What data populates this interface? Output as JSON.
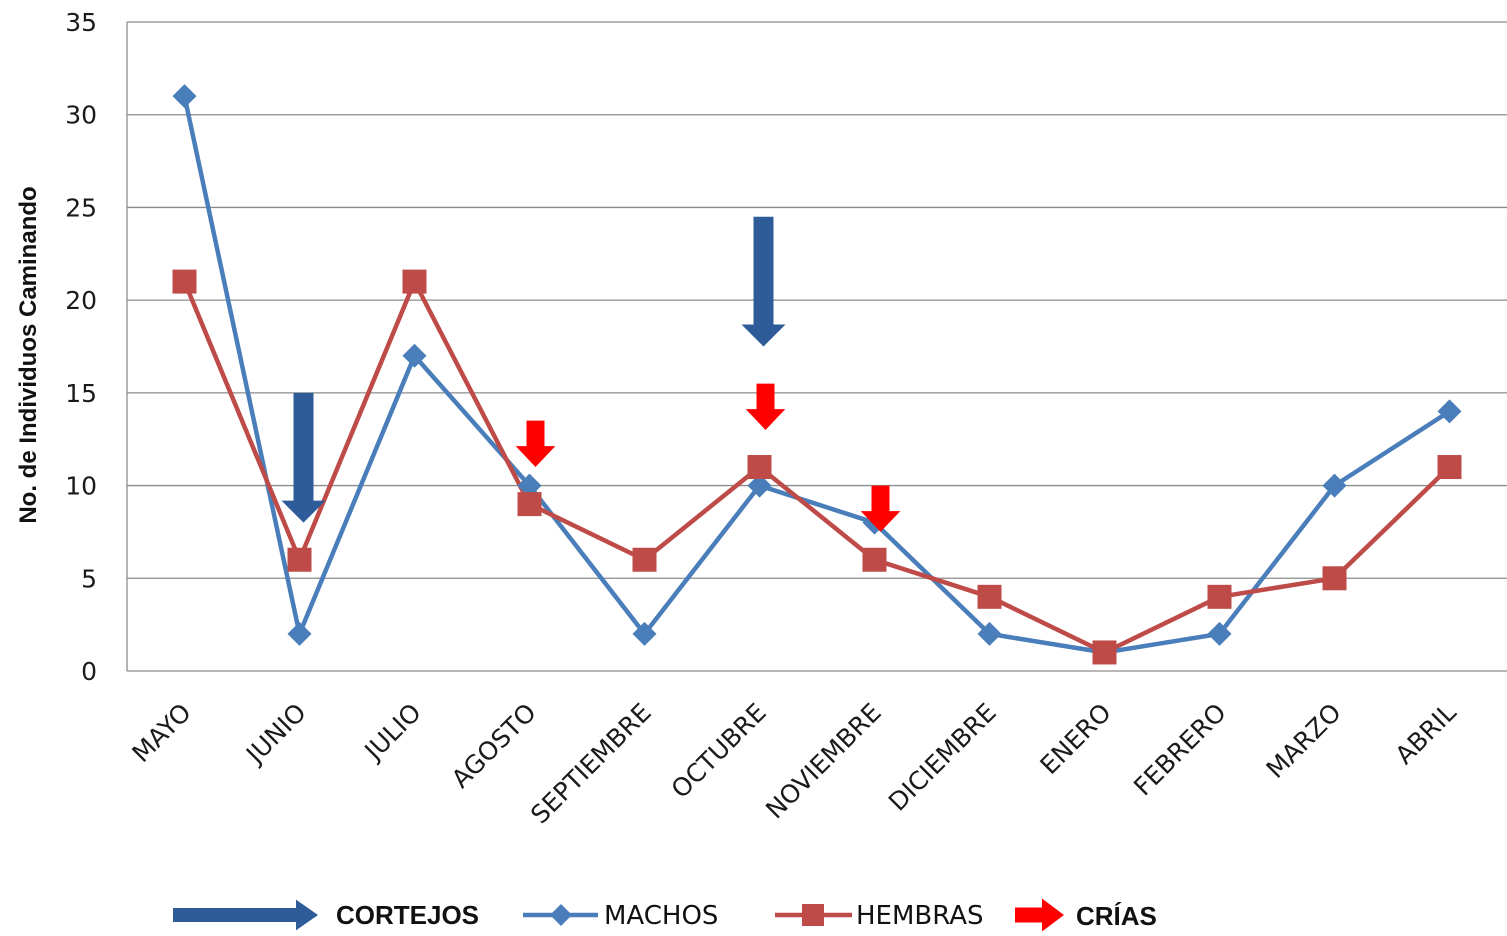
{
  "chart_data": {
    "type": "line",
    "ylabel": "No. de Individuos  Caminando",
    "xlabel": "",
    "ylim": [
      0,
      35
    ],
    "yticks": [
      0,
      5,
      10,
      15,
      20,
      25,
      30,
      35
    ],
    "grid": true,
    "legend_position": "bottom",
    "categories": [
      "MAYO",
      "JUNIO",
      "JULIO",
      "AGOSTO",
      "SEPTIEMBRE",
      "OCTUBRE",
      "NOVIEMBRE",
      "DICIEMBRE",
      "ENERO",
      "FEBRERO",
      "MARZO",
      "ABRIL"
    ],
    "series": [
      {
        "name": "MACHOS",
        "color": "#4a7ebb",
        "marker": "diamond",
        "values": [
          31,
          2,
          17,
          10,
          2,
          10,
          8,
          2,
          1,
          2,
          10,
          14
        ]
      },
      {
        "name": "HEMBRAS",
        "color": "#be4b48",
        "marker": "square",
        "values": [
          21,
          6,
          21,
          9,
          6,
          11,
          6,
          4,
          1,
          4,
          5,
          11
        ]
      }
    ],
    "annotations": [
      {
        "legend": "CORTEJOS",
        "color": "#2e5c99",
        "category": "JUNIO",
        "from": 15,
        "to": 8
      },
      {
        "legend": "CORTEJOS",
        "color": "#2e5c99",
        "category": "OCTUBRE",
        "from": 24.5,
        "to": 17.5
      },
      {
        "legend": "CRÍAS",
        "color": "#ff0000",
        "category": "AGOSTO",
        "from": 13.5,
        "to": 11
      },
      {
        "legend": "CRÍAS",
        "color": "#ff0000",
        "category": "OCTUBRE",
        "from": 15.5,
        "to": 13
      },
      {
        "legend": "CRÍAS",
        "color": "#ff0000",
        "category": "NOVIEMBRE",
        "from": 10,
        "to": 7.5
      }
    ],
    "legend": [
      {
        "label": "CORTEJOS",
        "kind": "arrow-right",
        "color": "#2e5c99"
      },
      {
        "label": "MACHOS",
        "kind": "line-diamond",
        "color": "#4a7ebb"
      },
      {
        "label": "HEMBRAS",
        "kind": "line-square",
        "color": "#be4b48"
      },
      {
        "label": "CRÍAS",
        "kind": "arrow-right",
        "color": "#ff0000"
      }
    ]
  }
}
